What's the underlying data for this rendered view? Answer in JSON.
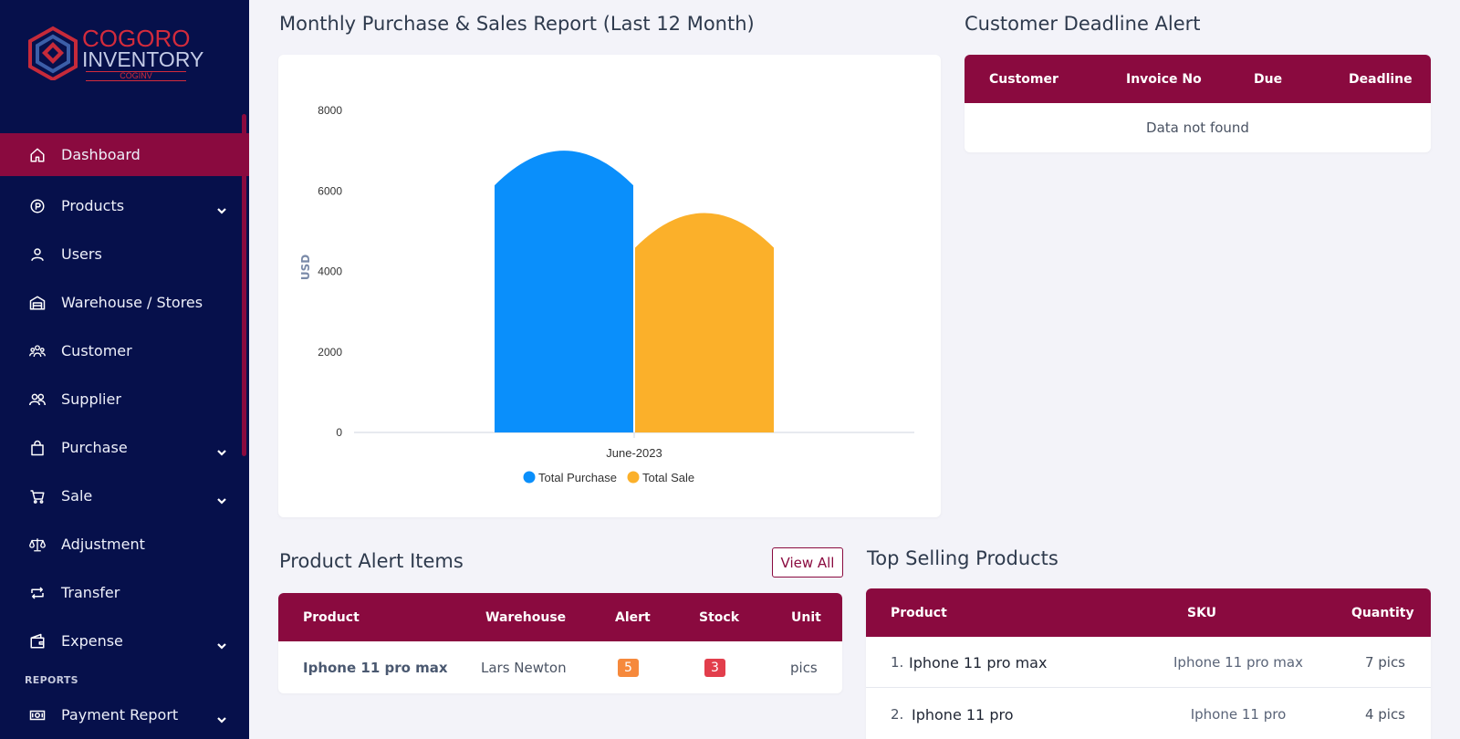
{
  "brand": {
    "line1": "COGORO",
    "line2": "INVENTORY",
    "line3": "COGINV"
  },
  "sidebar": {
    "items": [
      {
        "label": "Dashboard",
        "icon": "home-icon",
        "active": true,
        "has_children": false
      },
      {
        "label": "Products",
        "icon": "product-circle-icon",
        "has_children": true
      },
      {
        "label": "Users",
        "icon": "user-icon",
        "has_children": false
      },
      {
        "label": "Warehouse / Stores",
        "icon": "warehouse-icon",
        "has_children": false
      },
      {
        "label": "Customer",
        "icon": "customers-icon",
        "has_children": false
      },
      {
        "label": "Supplier",
        "icon": "supplier-icon",
        "has_children": false
      },
      {
        "label": "Purchase",
        "icon": "shopping-bag-icon",
        "has_children": true
      },
      {
        "label": "Sale",
        "icon": "cart-icon",
        "has_children": true
      },
      {
        "label": "Adjustment",
        "icon": "scale-icon",
        "has_children": false
      },
      {
        "label": "Transfer",
        "icon": "transfer-icon",
        "has_children": false
      },
      {
        "label": "Expense",
        "icon": "wallet-icon",
        "has_children": true
      }
    ],
    "section_reports": "REPORTS",
    "report_items": [
      {
        "label": "Payment Report",
        "icon": "money-icon",
        "has_children": true
      }
    ]
  },
  "chart_section": {
    "title": "Monthly Purchase & Sales Report (Last 12 Month)"
  },
  "chart_data": {
    "type": "bar",
    "categories": [
      "June-2023"
    ],
    "series": [
      {
        "name": "Total Purchase",
        "values": [
          7000
        ],
        "color": "#0a8ffb"
      },
      {
        "name": "Total Sale",
        "values": [
          5450
        ],
        "color": "#fbb02a"
      }
    ],
    "ylabel": "USD",
    "xlabel": "",
    "ylim": [
      0,
      8000
    ],
    "yticks": [
      0,
      2000,
      4000,
      6000,
      8000
    ],
    "legend": "bottom",
    "grid": false
  },
  "deadline": {
    "title": "Customer Deadline Alert",
    "columns": [
      "Customer",
      "Invoice No",
      "Due",
      "Deadline"
    ],
    "empty_text": "Data not found"
  },
  "product_alert": {
    "title": "Product Alert Items",
    "view_all": "View All",
    "columns": [
      "Product",
      "Warehouse",
      "Alert",
      "Stock",
      "Unit"
    ],
    "rows": [
      {
        "product": "Iphone 11 pro max",
        "warehouse": "Lars Newton",
        "alert": "5",
        "stock": "3",
        "unit": "pics"
      }
    ],
    "alert_color": "#f6893c",
    "stock_color": "#e23e4c"
  },
  "top_selling": {
    "title": "Top Selling Products",
    "columns": [
      "Product",
      "SKU",
      "Quantity"
    ],
    "rows": [
      {
        "index": "1.",
        "product": "Iphone 11 pro max",
        "sku": "Iphone 11 pro max",
        "quantity": "7 pics"
      },
      {
        "index": "2.",
        "product": "Iphone 11 pro",
        "sku": "Iphone 11 pro",
        "quantity": "4 pics"
      }
    ]
  },
  "colors": {
    "sidebar_bg": "#06104b",
    "accent": "#8a0a3f",
    "page_bg": "#f3f3f9"
  }
}
